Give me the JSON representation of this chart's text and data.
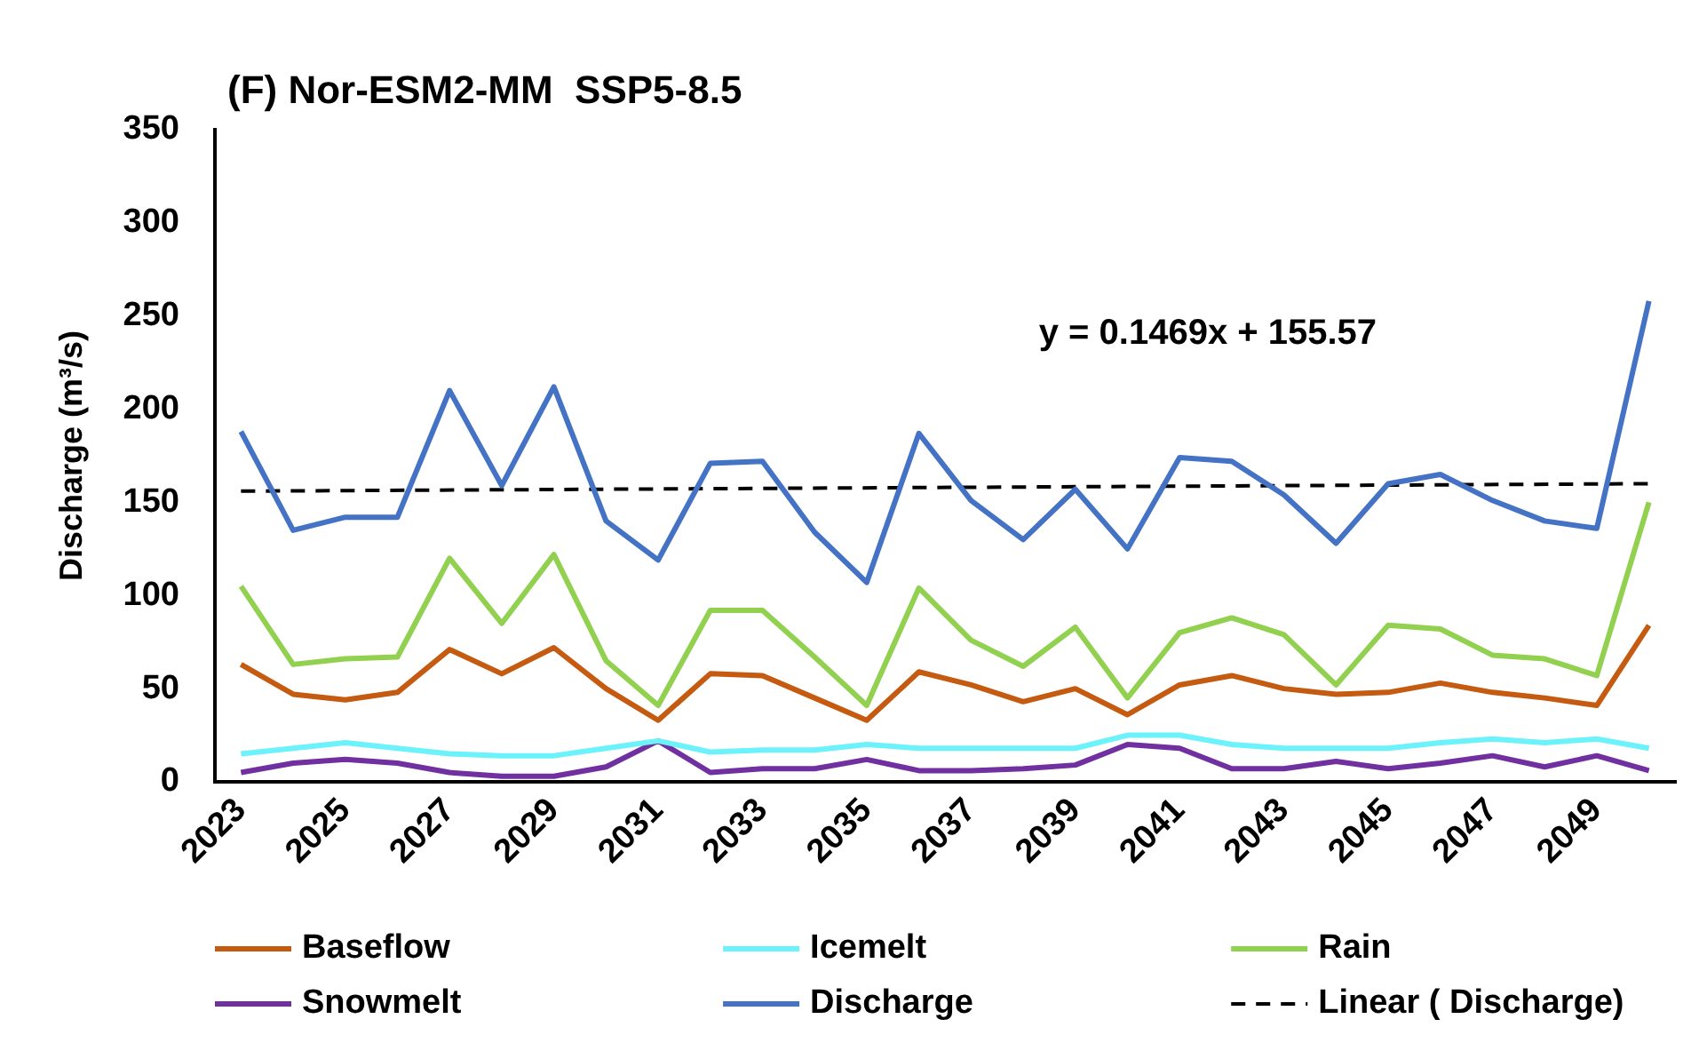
{
  "chart_data": {
    "type": "line",
    "title": "(F) Nor-ESM2-MM  SSP5-8.5",
    "ylabel": "Discharge (m³/s)",
    "categories": [
      "2023",
      null,
      "2025",
      null,
      "2027",
      null,
      "2029",
      null,
      "2031",
      null,
      "2033",
      null,
      "2035",
      null,
      "2037",
      null,
      "2039",
      null,
      "2041",
      null,
      "2043",
      null,
      "2045",
      null,
      "2047",
      null,
      "2049",
      null
    ],
    "ylim": [
      0,
      350
    ],
    "yticks": [
      0,
      50,
      100,
      150,
      200,
      250,
      300,
      350
    ],
    "legend": "bottom",
    "annotations": [
      "y = 0.1469x + 155.57"
    ],
    "series": [
      {
        "name": "Baseflow",
        "color": "#c55a11",
        "values": [
          63,
          47,
          44,
          48,
          71,
          58,
          72,
          50,
          33,
          58,
          57,
          45,
          33,
          59,
          52,
          43,
          50,
          36,
          52,
          57,
          50,
          47,
          48,
          53,
          48,
          45,
          41,
          84
        ]
      },
      {
        "name": "Icemelt",
        "color": "#6cf2fa",
        "values": [
          15,
          18,
          21,
          18,
          15,
          14,
          14,
          18,
          22,
          16,
          17,
          17,
          20,
          18,
          18,
          18,
          18,
          25,
          25,
          20,
          18,
          18,
          18,
          21,
          23,
          21,
          23,
          18
        ]
      },
      {
        "name": "Rain",
        "color": "#92d050",
        "values": [
          105,
          63,
          66,
          67,
          120,
          85,
          122,
          65,
          41,
          92,
          92,
          67,
          41,
          104,
          76,
          62,
          83,
          45,
          80,
          88,
          79,
          52,
          84,
          82,
          68,
          66,
          57,
          150
        ]
      },
      {
        "name": "Snowmelt",
        "color": "#7030a0",
        "values": [
          5,
          10,
          12,
          10,
          5,
          3,
          3,
          8,
          22,
          5,
          7,
          7,
          12,
          6,
          6,
          7,
          9,
          20,
          18,
          7,
          7,
          11,
          7,
          10,
          14,
          8,
          14,
          6
        ]
      },
      {
        "name": "Discharge",
        "color": "#4472c4",
        "values": [
          188,
          135,
          142,
          142,
          210,
          159,
          212,
          140,
          119,
          171,
          172,
          134,
          107,
          187,
          151,
          130,
          157,
          125,
          174,
          172,
          154,
          128,
          160,
          165,
          151,
          140,
          136,
          258
        ]
      },
      {
        "name": "Linear ( Discharge)",
        "color": "#000000",
        "line_style": "dashed",
        "values": [
          156,
          null,
          null,
          null,
          null,
          null,
          null,
          null,
          null,
          null,
          null,
          null,
          null,
          null,
          null,
          null,
          null,
          null,
          null,
          null,
          null,
          null,
          null,
          null,
          null,
          null,
          null,
          160
        ]
      }
    ]
  }
}
